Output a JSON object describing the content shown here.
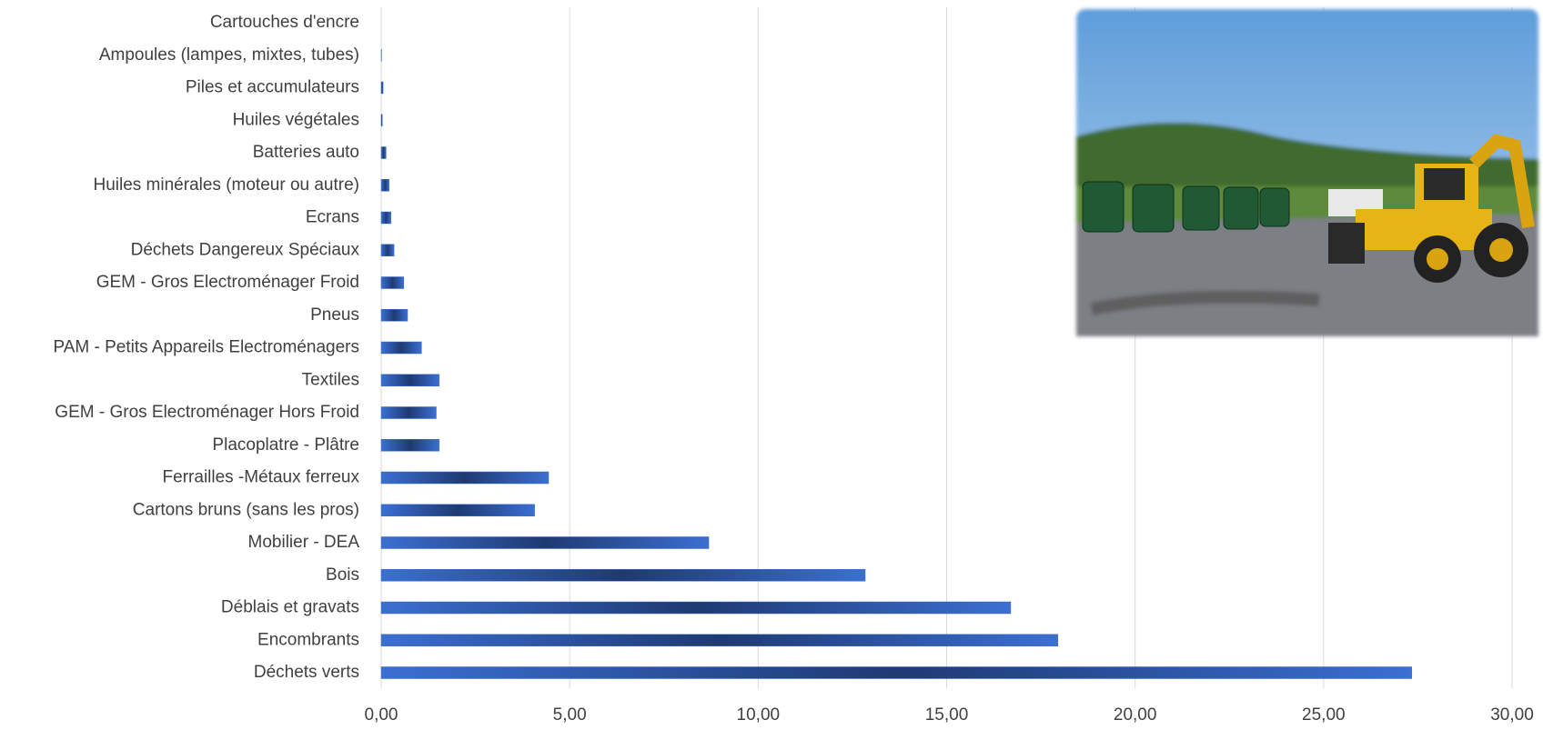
{
  "chart_data": {
    "type": "barh",
    "categories": [
      "Déchets verts",
      "Encombrants",
      "Déblais et gravats",
      "Bois",
      "Mobilier - DEA",
      "Cartons bruns (sans les pros)",
      "Ferrailles -Métaux ferreux",
      "Placoplatre - Plâtre",
      "GEM - Gros Electroménager Hors Froid",
      "Textiles",
      "PAM - Petits Appareils Electroménagers",
      "Pneus",
      "GEM - Gros Electroménager Froid",
      "Déchets Dangereux Spéciaux",
      "Ecrans",
      "Huiles minérales (moteur ou autre)",
      "Batteries auto",
      "Huiles végétales",
      "Piles et accumulateurs",
      "Ampoules (lampes, mixtes, tubes)",
      "Cartouches d'encre"
    ],
    "values": [
      27.34,
      17.95,
      16.7,
      12.84,
      8.69,
      4.07,
      4.44,
      1.54,
      1.46,
      1.54,
      1.07,
      0.7,
      0.6,
      0.34,
      0.26,
      0.21,
      0.13,
      0.03,
      0.05,
      0.01,
      0
    ],
    "color": "#3b6fd2",
    "xlim": [
      0,
      30
    ],
    "xticks": [
      {
        "value": 0,
        "label": "0,00"
      },
      {
        "value": 5,
        "label": "5,00"
      },
      {
        "value": 10,
        "label": "10,00"
      },
      {
        "value": 15,
        "label": "15,00"
      },
      {
        "value": 20,
        "label": "20,00"
      },
      {
        "value": 25,
        "label": "25,00"
      },
      {
        "value": 30,
        "label": "30,00"
      }
    ],
    "grid": true
  }
}
